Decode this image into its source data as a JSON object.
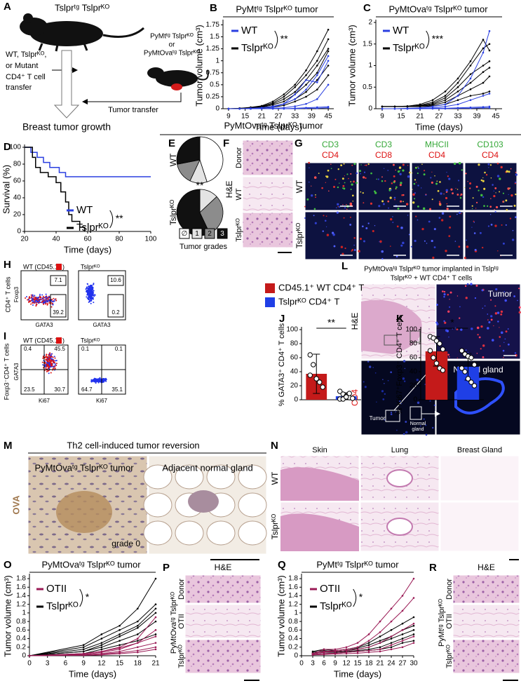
{
  "chart_data": [
    {
      "type": "line",
      "label": "B",
      "title": "PyMtᵗᵍ Tslprᴷᴼ tumor",
      "xlabel": "Time (days)",
      "ylabel": "Tumor volume (cm³)",
      "x": [
        9,
        13,
        17,
        21,
        25,
        29,
        33,
        37,
        41,
        45
      ],
      "xlim": [
        7,
        47
      ],
      "xticks": [
        9,
        15,
        21,
        27,
        33,
        39,
        45
      ],
      "ylim": [
        0,
        1.8
      ],
      "yticks": [
        0,
        0.25,
        0.5,
        0.75,
        1,
        1.25,
        1.5,
        1.75
      ],
      "significance": "**",
      "series": [
        {
          "name": "WT",
          "color": "#2a3fe0",
          "lines": [
            [
              0,
              0,
              0.01,
              0.02,
              0.05,
              0.1,
              0.2,
              0.4,
              0.7,
              1.1
            ],
            [
              0,
              0,
              0,
              0.02,
              0.03,
              0.1,
              0.3,
              0.6,
              0.55,
              1.0
            ],
            [
              0,
              0,
              0,
              0,
              0.01,
              0.02,
              0.05,
              0.1,
              0.2,
              0.5
            ],
            [
              0,
              0,
              0,
              0,
              0,
              0,
              0.01,
              0.02,
              0.03,
              0.04
            ],
            [
              0,
              0,
              0,
              0,
              0,
              0,
              0,
              0.01,
              0.01,
              0.02
            ]
          ]
        },
        {
          "name": "Tslprᴷᴼ",
          "color": "#000000",
          "lines": [
            [
              0,
              0.01,
              0.03,
              0.06,
              0.15,
              0.3,
              0.5,
              0.8,
              1.2,
              1.65
            ],
            [
              0,
              0.01,
              0.02,
              0.05,
              0.12,
              0.25,
              0.45,
              0.7,
              1.0,
              1.45
            ],
            [
              0,
              0,
              0.02,
              0.04,
              0.1,
              0.2,
              0.35,
              0.6,
              0.9,
              1.25
            ],
            [
              0,
              0,
              0.01,
              0.03,
              0.08,
              0.15,
              0.3,
              0.5,
              0.75,
              1.2
            ],
            [
              0,
              0,
              0.01,
              0.02,
              0.05,
              0.1,
              0.2,
              0.35,
              0.6,
              0.9
            ],
            [
              0,
              0,
              0,
              0.01,
              0.03,
              0.07,
              0.15,
              0.25,
              0.4,
              0.7
            ]
          ]
        }
      ]
    },
    {
      "type": "line",
      "label": "C",
      "title": "PyMtOvaᵗᵍ Tslprᴷᴼ tumor",
      "xlabel": "Time (days)",
      "ylabel": "Tumor volume (cm³)",
      "x": [
        9,
        13,
        17,
        21,
        25,
        29,
        33,
        37,
        41,
        43
      ],
      "xlim": [
        7,
        47
      ],
      "xticks": [
        9,
        15,
        21,
        27,
        33,
        39,
        45
      ],
      "ylim": [
        0,
        2
      ],
      "yticks": [
        0,
        0.5,
        1,
        1.5,
        2
      ],
      "significance": "***",
      "series": [
        {
          "name": "WT",
          "color": "#2a3fe0",
          "lines": [
            [
              0,
              0,
              0.01,
              0.02,
              0.05,
              0.1,
              0.3,
              0.7,
              1.3,
              1.8
            ],
            [
              0,
              0,
              0,
              0.01,
              0.02,
              0.05,
              0.1,
              0.2,
              0.3,
              0.35
            ],
            [
              0,
              0,
              0,
              0,
              0.01,
              0.01,
              0.02,
              0.03,
              0.04,
              0.05
            ],
            [
              0,
              0,
              0,
              0,
              0,
              0,
              0.01,
              0.01,
              0.02,
              0.02
            ]
          ]
        },
        {
          "name": "Tslprᴷᴼ",
          "color": "#000000",
          "lines": [
            [
              0.05,
              0.05,
              0.06,
              0.1,
              0.2,
              0.4,
              0.7,
              1.1,
              1.6,
              1.35
            ],
            [
              0.05,
              0.05,
              0.05,
              0.08,
              0.15,
              0.3,
              0.6,
              1.0,
              1.4,
              1.5
            ],
            [
              0.05,
              0.05,
              0.05,
              0.07,
              0.12,
              0.25,
              0.5,
              0.8,
              1.0,
              1.1
            ],
            [
              0.05,
              0.05,
              0.05,
              0.06,
              0.1,
              0.2,
              0.4,
              0.6,
              0.85,
              0.95
            ],
            [
              0.05,
              0.05,
              0.05,
              0.05,
              0.08,
              0.15,
              0.3,
              0.45,
              0.6,
              0.75
            ],
            [
              0.05,
              0.05,
              0.05,
              0.05,
              0.06,
              0.1,
              0.2,
              0.3,
              0.35,
              0.4
            ]
          ]
        }
      ]
    },
    {
      "type": "step",
      "label": "D",
      "xlabel": "Time (days)",
      "ylabel": "Survival (%)",
      "xlim": [
        20,
        100
      ],
      "xticks": [
        20,
        40,
        60,
        80,
        100
      ],
      "ylim": [
        0,
        100
      ],
      "yticks": [
        0,
        20,
        40,
        60,
        80,
        100
      ],
      "significance": "**",
      "series": [
        {
          "name": "WT",
          "color": "#2a3fe0",
          "x": [
            20,
            24,
            28,
            32,
            36,
            42,
            46,
            100
          ],
          "values": [
            100,
            94,
            88,
            82,
            76,
            70,
            65,
            65
          ]
        },
        {
          "name": "Tslprᴷᴼ",
          "color": "#000000",
          "x": [
            20,
            25,
            27,
            30,
            35,
            40,
            43,
            46,
            48,
            50,
            55,
            58
          ],
          "values": [
            100,
            88,
            76,
            70,
            65,
            58,
            47,
            35,
            20,
            12,
            5,
            0
          ]
        }
      ]
    },
    {
      "type": "pie",
      "label": "E",
      "xlabel": "Tumor grades",
      "significance": "**",
      "categories": [
        "∅",
        "1",
        "2",
        "3"
      ],
      "colors": [
        "#ffffff",
        "#e4e4e4",
        "#8c8c8c",
        "#111111"
      ],
      "pies": [
        {
          "label": "WT",
          "values": [
            45,
            12,
            15,
            28
          ]
        },
        {
          "label": "Tslprᴷᴼ",
          "values": [
            0,
            13,
            30,
            57
          ]
        }
      ]
    },
    {
      "type": "bar",
      "label": "J",
      "ylabel": "% GATA3⁺ CD4⁺ T cells",
      "ylim": [
        0,
        100
      ],
      "yticks": [
        0,
        20,
        40,
        60,
        80,
        100
      ],
      "significance": "**",
      "series": [
        {
          "name": "CD45.1⁺ WT CD4⁺ T",
          "color": "#c41a1a",
          "value": 37,
          "error": 28,
          "points": [
            64,
            50,
            30,
            25,
            18,
            35
          ]
        },
        {
          "name": "Tslprᴷᴼ CD4⁺ T",
          "color": "#1f3fe6",
          "value": 5,
          "error": 5,
          "points": [
            12,
            8,
            5,
            3,
            2,
            1,
            1,
            4,
            9
          ]
        }
      ]
    },
    {
      "type": "bar",
      "label": "K",
      "ylabel": "% Ki67⁺Foxp3⁻ CD4⁺ T cells",
      "ylim": [
        0,
        100
      ],
      "yticks": [
        0,
        20,
        40,
        60,
        80,
        100
      ],
      "significance": "*",
      "series": [
        {
          "color": "#c41a1a",
          "value": 69,
          "error": 21,
          "points": [
            90,
            88,
            84,
            80,
            72,
            70,
            60,
            52,
            45,
            42
          ]
        },
        {
          "color": "#1f3fe6",
          "value": 47,
          "error": 19,
          "points": [
            70,
            65,
            62,
            60,
            50,
            45,
            40,
            30,
            25,
            20
          ]
        }
      ]
    },
    {
      "type": "line",
      "label": "O",
      "title": "PyMtOvaᵗᵍ Tslprᴷᴼ tumor",
      "xlabel": "Time (days)",
      "ylabel": "Tumor volume (cm³)",
      "x": [
        0,
        9,
        12,
        15,
        18,
        21
      ],
      "xlim": [
        0,
        21
      ],
      "xticks": [
        0,
        3,
        6,
        9,
        12,
        15,
        18,
        21
      ],
      "ylim": [
        0,
        1.85
      ],
      "yticks": [
        0,
        0.2,
        0.4,
        0.6,
        0.8,
        1,
        1.2,
        1.4,
        1.6,
        1.8
      ],
      "significance": "*",
      "series": [
        {
          "name": "OTII",
          "color": "#9a1a55",
          "lines": [
            [
              0,
              0.05,
              0.1,
              0.2,
              0.4,
              0.9
            ],
            [
              0,
              0.03,
              0.08,
              0.15,
              0.3,
              0.6
            ],
            [
              0,
              0.05,
              0.1,
              0.18,
              0.3,
              0.45
            ],
            [
              0,
              0.02,
              0.05,
              0.1,
              0.2,
              0.3
            ],
            [
              0,
              0.02,
              0.04,
              0.07,
              0.12,
              0.2
            ],
            [
              0,
              0.01,
              0.02,
              0.05,
              0.08,
              0.15
            ]
          ]
        },
        {
          "name": "Tslprᴷᴼ",
          "color": "#000000",
          "lines": [
            [
              0,
              0.25,
              0.5,
              0.7,
              1.1,
              1.8
            ],
            [
              0,
              0.2,
              0.4,
              0.6,
              0.8,
              1.2
            ],
            [
              0,
              0.15,
              0.3,
              0.5,
              0.7,
              1.1
            ],
            [
              0,
              0.1,
              0.25,
              0.45,
              0.65,
              1.0
            ],
            [
              0,
              0.1,
              0.2,
              0.35,
              0.5,
              0.8
            ],
            [
              0,
              0.05,
              0.15,
              0.25,
              0.35,
              0.5
            ]
          ]
        }
      ]
    },
    {
      "type": "line",
      "label": "Q",
      "title": "PyMtᵗᵍ Tslprᴷᴼ tumor",
      "xlabel": "Time (days)",
      "ylabel": "Tumor volume (cm³)",
      "x": [
        3,
        6,
        9,
        12,
        15,
        18,
        21,
        24,
        27,
        30
      ],
      "xlim": [
        0,
        30
      ],
      "xticks": [
        0,
        3,
        6,
        9,
        12,
        15,
        18,
        21,
        24,
        27,
        30
      ],
      "ylim": [
        0,
        1.85
      ],
      "yticks": [
        0,
        0.2,
        0.4,
        0.6,
        0.8,
        1,
        1.2,
        1.4,
        1.6,
        1.8
      ],
      "significance": "*",
      "series": [
        {
          "name": "OTII",
          "color": "#9a1a55",
          "lines": [
            [
              0.05,
              0.15,
              0.15,
              0.2,
              0.3,
              0.5,
              0.8,
              1.1,
              1.4,
              1.8
            ],
            [
              0.05,
              0.1,
              0.12,
              0.15,
              0.2,
              0.35,
              0.55,
              0.8,
              1.05,
              1.35
            ],
            [
              0.05,
              0.08,
              0.1,
              0.12,
              0.15,
              0.2,
              0.3,
              0.45,
              0.6,
              0.75
            ],
            [
              0.03,
              0.05,
              0.06,
              0.08,
              0.1,
              0.12,
              0.15,
              0.25,
              0.35,
              0.45
            ],
            [
              0.02,
              0.03,
              0.04,
              0.05,
              0.06,
              0.08,
              0.1,
              0.15,
              0.2,
              0.3
            ]
          ]
        },
        {
          "name": "Tslprᴷᴼ",
          "color": "#000000",
          "lines": [
            [
              0.1,
              0.15,
              0.12,
              0.15,
              0.2,
              0.3,
              0.45,
              0.6,
              0.75,
              0.9
            ],
            [
              0.08,
              0.12,
              0.1,
              0.12,
              0.18,
              0.25,
              0.35,
              0.45,
              0.6,
              0.7
            ],
            [
              0.05,
              0.1,
              0.1,
              0.12,
              0.15,
              0.2,
              0.3,
              0.4,
              0.5,
              0.6
            ],
            [
              0.05,
              0.08,
              0.08,
              0.1,
              0.12,
              0.15,
              0.2,
              0.3,
              0.4,
              0.5
            ],
            [
              0.03,
              0.05,
              0.06,
              0.08,
              0.1,
              0.12,
              0.15,
              0.2,
              0.3,
              0.35
            ]
          ]
        }
      ]
    }
  ],
  "figure": {
    "panel_labels": [
      "A",
      "F",
      "G",
      "H",
      "I",
      "L",
      "M",
      "N",
      "P",
      "R"
    ],
    "a": {
      "mouse_label": "Tslprᵗᵍ Tslprᴷᴼ",
      "transfer": [
        "WT, Tslprᴷᴼ,",
        "or Mutant",
        "CD4⁺ T cell",
        "transfer"
      ],
      "donor": [
        "PyMtᵗᵍ Tslprᴷᴼ",
        "or",
        "PyMtOvaᵗᵍ Tslprᴷᴼ"
      ],
      "tumor_transfer": "Tumor transfer",
      "outcome": "Breast tumor growth"
    },
    "section_title": "PyMtOvaᵗᵍ Tslprᴷᴼ tumor",
    "f": {
      "rows": [
        "Donor",
        "WT",
        "Tslprᴷᴼ"
      ],
      "stain": "H&E"
    },
    "g": {
      "columns": [
        [
          "CD3",
          "CD4"
        ],
        [
          "CD3",
          "CD8"
        ],
        [
          "MHCII",
          "CD4"
        ],
        [
          "CD103",
          "CD4"
        ]
      ],
      "rows": [
        "WT",
        "Tslprᴷᴼ"
      ]
    },
    "h": {
      "titles": [
        "WT (CD45.1",
        ")",
        "Tslprᴷᴼ"
      ],
      "gates": [
        "7.1",
        "39.2",
        "10.6",
        "0.2"
      ],
      "y_label": "CD4⁺ T cells",
      "y_marker": "Foxp3",
      "x_marker": "GATA3"
    },
    "i": {
      "titles": [
        "WT (CD45.1",
        ")",
        "Tslprᴷᴼ"
      ],
      "quadrants": [
        [
          "0.4",
          "45.5",
          "23.5",
          "30.7"
        ],
        [
          "0.1",
          "0.1",
          "64.7",
          "35.1"
        ]
      ],
      "y_label": "Foxp3⁻CD4⁺ T cells",
      "y_marker": "GATA3",
      "x_marker": "Ki67"
    },
    "l": {
      "title": [
        "PyMtOvaᵗᵍ Tslprᴷᴼ tumor implanted in Tslpᵗᵍ",
        "Tslprᴷᴼ + WT CD4⁺ T cells"
      ],
      "rows": [
        "H&E",
        "CD4"
      ],
      "insets": [
        "Tumor",
        "Normal gland"
      ],
      "overview": [
        "Tumor",
        "Normal",
        "gland"
      ]
    },
    "m": {
      "title": "Th2 cell-induced tumor reversion",
      "panels": [
        "PyMtOvaᵗᵍ Tslprᴷᴼ tumor",
        "Adjacent normal gland"
      ],
      "stain": "OVA",
      "grade": "grade 0"
    },
    "n": {
      "columns": [
        "Skin",
        "Lung",
        "Breast Gland"
      ],
      "rows": [
        "WT",
        "Tslprᴷᴼ"
      ]
    },
    "p": {
      "stain": "H&E",
      "rows": [
        "Donor",
        "OTII",
        "Tslprᴷᴼ"
      ],
      "model": "PyMtOvaᵗᵍ Tslprᴷᴼ"
    },
    "r": {
      "stain": "H&E",
      "rows": [
        "Donor",
        "OTII",
        "Tslprᴷᴼ"
      ],
      "model": "PyMtᵗᵍ Tslprᴷᴼ"
    }
  }
}
